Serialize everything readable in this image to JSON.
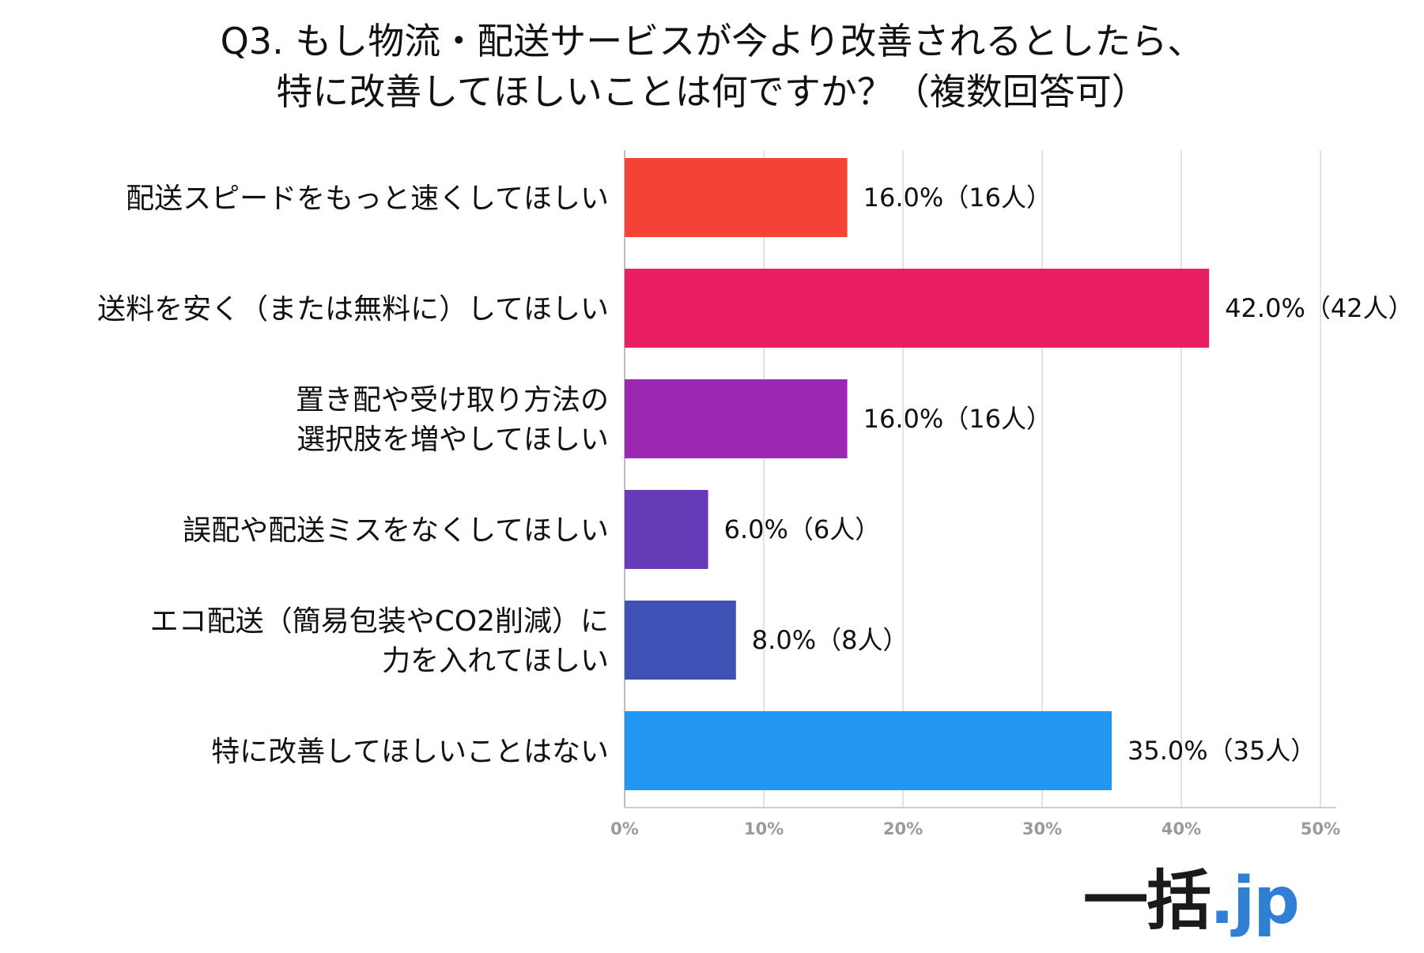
{
  "chart_data": {
    "type": "bar",
    "orientation": "horizontal",
    "title_lines": [
      "Q3. もし物流・配送サービスが今より改善されるとしたら、",
      "特に改善してほしいことは何ですか？（複数回答可）"
    ],
    "categories": [
      [
        "配送スピードをもっと速くしてほしい"
      ],
      [
        "送料を安く（または無料に）してほしい"
      ],
      [
        "置き配や受け取り方法の",
        "選択肢を増やしてほしい"
      ],
      [
        "誤配や配送ミスをなくしてほしい"
      ],
      [
        "エコ配送（簡易包装やCO2削減）に",
        "力を入れてほしい"
      ],
      [
        "特に改善してほしいことはない"
      ]
    ],
    "values": [
      16.0,
      42.0,
      16.0,
      6.0,
      8.0,
      35.0
    ],
    "data_labels": [
      "16.0%（16人）",
      "42.0%（42人）",
      "16.0%（16人）",
      "6.0%（6人）",
      "8.0%（8人）",
      "35.0%（35人）"
    ],
    "colors": [
      "#f44336",
      "#e91e63",
      "#9c27b0",
      "#673ab7",
      "#3f51b5",
      "#2196f3"
    ],
    "xlim": [
      0,
      50
    ],
    "xticks": [
      "0%",
      "10%",
      "20%",
      "30%",
      "40%",
      "50%"
    ],
    "grid": true,
    "legend": "none"
  },
  "logo": {
    "main": "一括",
    "sub": ".jp"
  }
}
